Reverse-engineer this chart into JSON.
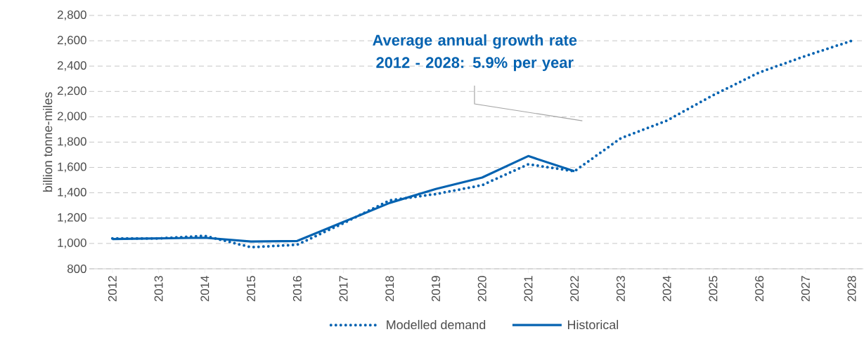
{
  "chart_data": {
    "type": "line",
    "ylabel": "billion tonne-miles",
    "categories": [
      "2012",
      "2013",
      "2014",
      "2015",
      "2016",
      "2017",
      "2018",
      "2019",
      "2020",
      "2021",
      "2022",
      "2023",
      "2024",
      "2025",
      "2026",
      "2027",
      "2028"
    ],
    "series": [
      {
        "name": "Modelled demand",
        "color": "#0563b1",
        "line_style": "dotted",
        "values": [
          1040,
          1040,
          1060,
          970,
          990,
          1160,
          1340,
          1390,
          1460,
          1625,
          1570,
          1830,
          1970,
          2170,
          2350,
          2480,
          2600
        ]
      },
      {
        "name": "Historical",
        "color": "#0563b1",
        "line_style": "solid",
        "values": [
          1035,
          1040,
          1045,
          1015,
          1020,
          1170,
          1320,
          1430,
          1520,
          1690,
          1570,
          null,
          null,
          null,
          null,
          null,
          null
        ]
      }
    ],
    "ylim": [
      800,
      2800
    ],
    "yticks": [
      800,
      {
        "value": 1000,
        "label": "1,000"
      },
      {
        "value": 1200,
        "label": "1,200"
      },
      {
        "value": 1400,
        "label": "1,400"
      },
      {
        "value": 1600,
        "label": "1,600"
      },
      {
        "value": 1800,
        "label": "1,800"
      },
      {
        "value": 2000,
        "label": "2,000"
      },
      {
        "value": 2200,
        "label": "2,200"
      },
      {
        "value": 2400,
        "label": "2,400"
      },
      {
        "value": 2600,
        "label": "2,600"
      },
      {
        "value": 2800,
        "label": "2,800"
      }
    ],
    "grid": "y",
    "legend": "bottom",
    "marker": "none",
    "annotations": [
      "Average annual growth rate 2012 - 2028: 5.9% per year"
    ]
  }
}
